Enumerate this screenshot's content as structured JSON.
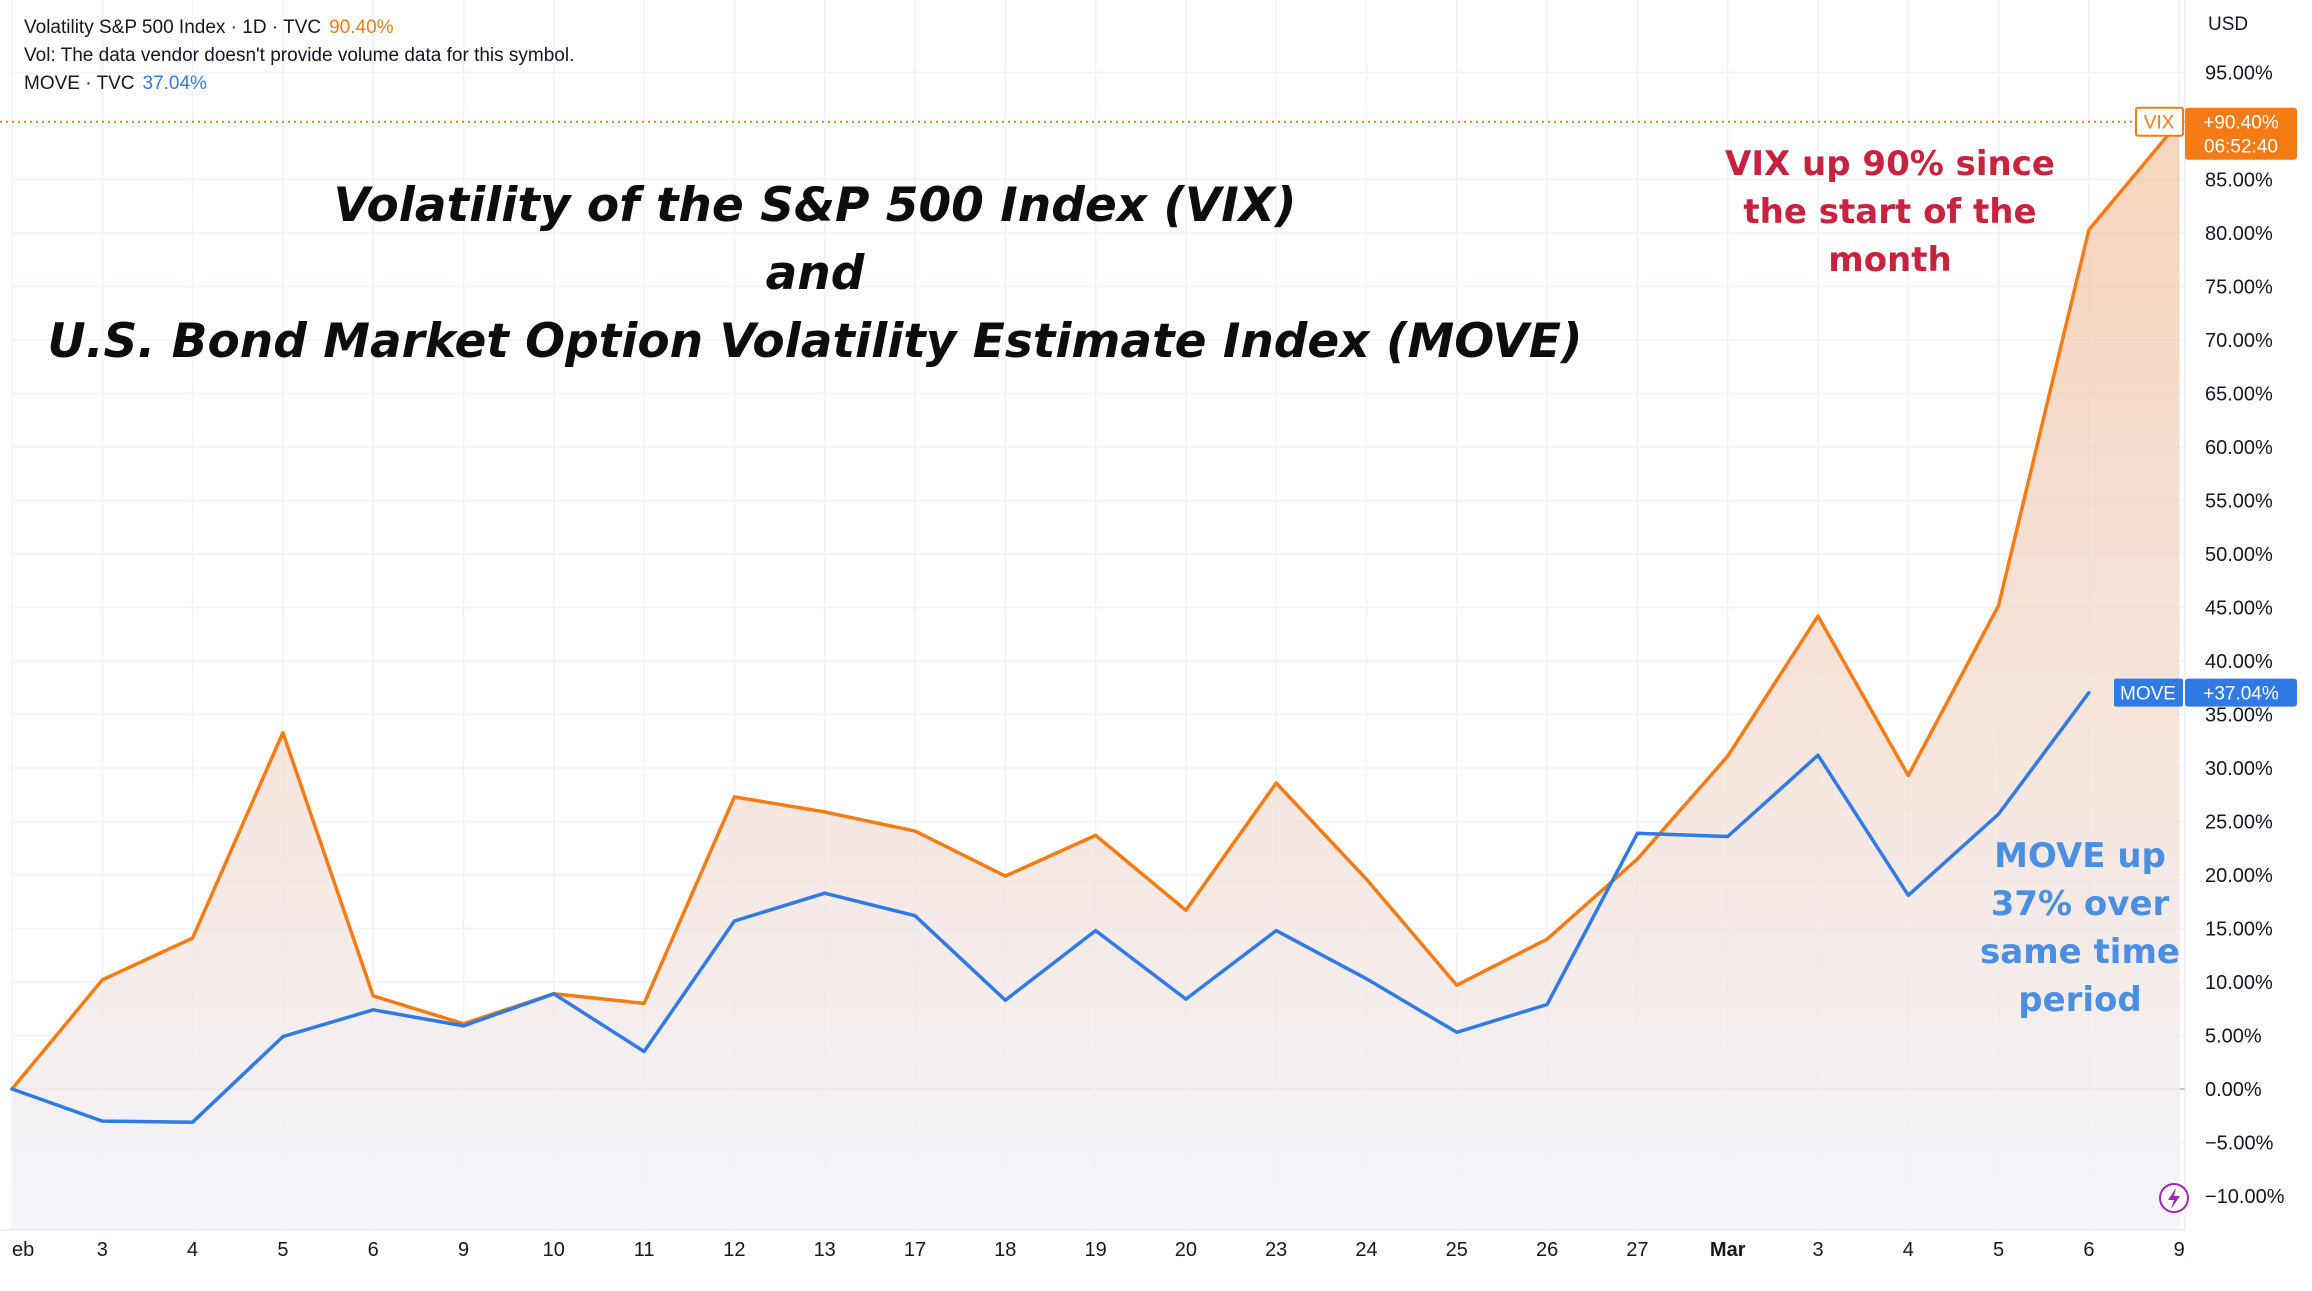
{
  "legend": {
    "vix_line": "Volatility S&P 500 Index · 1D · TVC",
    "vix_value": "90.40%",
    "vol_line": "Vol: The data vendor doesn't provide volume data for this symbol.",
    "move_line": "MOVE · TVC",
    "move_value": "37.04%"
  },
  "title": {
    "line1": "Volatility of the S&P 500 Index (VIX)",
    "line2": "and",
    "line3": "U.S. Bond Market Option Volatility Estimate Index (MOVE)"
  },
  "annotations": {
    "vix_note": [
      "VIX up 90% since",
      "the start of the",
      "month"
    ],
    "move_note": [
      "MOVE up",
      "37% over",
      "same time",
      "period"
    ]
  },
  "price_axis": {
    "currency": "USD"
  },
  "price_labels": {
    "vix_tag": "VIX",
    "vix_value": "+90.40%",
    "vix_countdown": "06:52:40",
    "move_tag": "MOVE",
    "move_value": "+37.04%"
  },
  "colors": {
    "vix": "#f57c15",
    "move": "#2f7ae5",
    "vix_note": "#c8223e",
    "move_note": "#4a8fe2",
    "grid": "#f0f3fa",
    "zero_line": "#b2b5be",
    "axis_text": "#131722",
    "fill_top": "#f4c6a6",
    "fill_bottom": "#f3f4fb"
  },
  "chart_data": {
    "type": "line",
    "title": "Volatility of the S&P 500 Index (VIX) and U.S. Bond Market Option Volatility Estimate Index (MOVE)",
    "xlabel": "",
    "ylabel": "",
    "unit": "%",
    "categories": [
      "eb",
      "3",
      "4",
      "5",
      "6",
      "9",
      "10",
      "11",
      "12",
      "13",
      "17",
      "18",
      "19",
      "20",
      "23",
      "24",
      "25",
      "26",
      "27",
      "Mar",
      "3",
      "4",
      "5",
      "6",
      "9"
    ],
    "bold_categories": [
      "Mar"
    ],
    "yticks": [
      95,
      90,
      85,
      80,
      75,
      70,
      65,
      60,
      55,
      50,
      45,
      40,
      35,
      30,
      25,
      20,
      15,
      10,
      5,
      0,
      -5,
      -10
    ],
    "ytick_labels": [
      "95.00%",
      "90.00%",
      "85.00%",
      "80.00%",
      "75.00%",
      "70.00%",
      "65.00%",
      "60.00%",
      "55.00%",
      "50.00%",
      "45.00%",
      "40.00%",
      "35.00%",
      "30.00%",
      "25.00%",
      "20.00%",
      "15.00%",
      "10.00%",
      "5.00%",
      "0.00%",
      "−5.00%",
      "−10.00%"
    ],
    "ylim": [
      -10.5,
      99
    ],
    "grid": true,
    "series": [
      {
        "name": "VIX",
        "color": "#f57c15",
        "values": [
          0,
          10.2,
          14.1,
          33.3,
          8.7,
          6.1,
          8.9,
          8.0,
          27.3,
          25.9,
          24.1,
          19.9,
          23.7,
          16.7,
          28.6,
          19.6,
          9.7,
          14.0,
          21.5,
          31.1,
          44.2,
          29.3,
          45.2,
          80.3,
          90.4
        ]
      },
      {
        "name": "MOVE",
        "color": "#2f7ae5",
        "values": [
          0,
          -3.0,
          -3.1,
          4.9,
          7.4,
          5.9,
          8.9,
          3.5,
          15.7,
          18.3,
          16.2,
          8.3,
          14.8,
          8.4,
          14.8,
          10.3,
          5.3,
          7.9,
          23.9,
          23.6,
          31.2,
          18.1,
          25.7,
          37.04,
          null
        ]
      }
    ],
    "last_values": {
      "VIX": 90.4,
      "MOVE": 37.04
    }
  }
}
